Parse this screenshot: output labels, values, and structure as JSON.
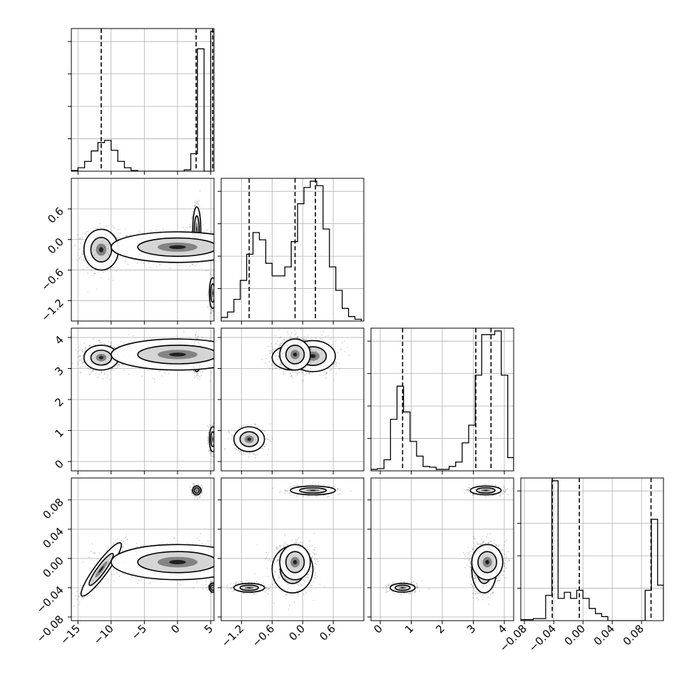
{
  "chart_data": {
    "type": "corner",
    "title": "",
    "grid": true,
    "parameters": [
      {
        "range": [
          -16,
          5.5
        ],
        "ticks": [
          -15,
          -10,
          -5,
          0,
          5
        ],
        "tick_labels": [
          "−15",
          "−10",
          "−5",
          "0",
          "5"
        ],
        "quantiles": [
          -11.5,
          2.8,
          5.3
        ]
      },
      {
        "range": [
          -1.6,
          1.2
        ],
        "ticks": [
          -1.2,
          -0.6,
          0.0,
          0.6
        ],
        "tick_labels": [
          "−1.2",
          "−0.6",
          "0.0",
          "0.6"
        ],
        "quantiles": [
          -1.05,
          -0.15,
          0.25
        ]
      },
      {
        "range": [
          -0.3,
          4.3
        ],
        "ticks": [
          0,
          1,
          2,
          3,
          4
        ],
        "tick_labels": [
          "0",
          "1",
          "2",
          "3",
          "4"
        ],
        "quantiles": [
          0.72,
          3.08,
          3.57
        ]
      },
      {
        "range": [
          -0.085,
          0.11
        ],
        "ticks": [
          -0.08,
          -0.04,
          0.0,
          0.04,
          0.08
        ],
        "tick_labels": [
          "−0.08",
          "−0.04",
          "0.00",
          "0.04",
          "0.08"
        ],
        "quantiles": [
          -0.042,
          -0.005,
          0.093
        ]
      }
    ],
    "histograms": [
      {
        "bins": [
          -16,
          -15,
          -14,
          -13,
          -12,
          -11,
          -10,
          -9,
          -8,
          -7,
          -6,
          -5,
          -4,
          -3,
          -2,
          -1,
          0,
          1,
          2,
          3,
          4,
          5,
          5.5
        ],
        "counts": [
          1,
          5,
          14,
          29,
          41,
          44,
          30,
          14,
          5,
          1,
          0,
          0,
          0,
          0,
          0,
          0,
          0,
          2,
          25,
          175,
          0,
          200
        ]
      },
      {
        "bins": [
          -1.6,
          -1.475,
          -1.35,
          -1.225,
          -1.1,
          -0.975,
          -0.85,
          -0.725,
          -0.6,
          -0.475,
          -0.35,
          -0.225,
          -0.1,
          0.025,
          0.15,
          0.275,
          0.4,
          0.525,
          0.65,
          0.775,
          0.9,
          1.025,
          1.15
        ],
        "counts": [
          4,
          10,
          24,
          45,
          74,
          98,
          90,
          64,
          50,
          50,
          60,
          88,
          130,
          148,
          155,
          150,
          102,
          60,
          34,
          14,
          5,
          2
        ]
      },
      {
        "bins": [
          -0.3,
          -0.09,
          0.12,
          0.33,
          0.54,
          0.75,
          0.96,
          1.17,
          1.38,
          1.59,
          1.8,
          2.01,
          2.22,
          2.43,
          2.64,
          2.85,
          3.06,
          3.27,
          3.48,
          3.69,
          3.9,
          4.11,
          4.3
        ],
        "counts": [
          2,
          3,
          15,
          70,
          115,
          80,
          40,
          20,
          6,
          5,
          2,
          2,
          6,
          12,
          38,
          62,
          130,
          185,
          185,
          190,
          130,
          18
        ]
      },
      {
        "bins": [
          -0.085,
          -0.0765,
          -0.068,
          -0.0595,
          -0.051,
          -0.0425,
          -0.034,
          -0.0255,
          -0.017,
          -0.0085,
          0.0,
          0.0085,
          0.017,
          0.0255,
          0.034,
          0.0425,
          0.051,
          0.0595,
          0.068,
          0.0765,
          0.085,
          0.0935,
          0.102,
          0.11
        ],
        "counts": [
          1,
          1,
          2,
          2,
          25,
          138,
          22,
          28,
          22,
          30,
          22,
          12,
          7,
          4,
          0,
          0,
          0,
          0,
          0,
          0,
          30,
          100,
          35
        ]
      }
    ],
    "modes": [
      {
        "mean": [
          -11.5,
          -0.2,
          3.35,
          -0.015
        ],
        "sd": [
          1.3,
          0.2,
          0.2,
          0.016
        ],
        "weight": 0.2
      },
      {
        "mean": [
          2.9,
          0.2,
          3.4,
          0.093
        ],
        "sd": [
          0.3,
          0.22,
          0.25,
          0.003
        ],
        "weight": 0.2
      },
      {
        "mean": [
          5.3,
          -1.05,
          0.72,
          -0.04
        ],
        "sd": [
          0.25,
          0.15,
          0.2,
          0.003
        ],
        "weight": 0.2
      },
      {
        "mean": [
          0.0,
          -0.15,
          3.45,
          -0.005
        ],
        "sd": [
          5.0,
          0.15,
          0.25,
          0.012
        ],
        "weight": 0.2
      }
    ]
  }
}
